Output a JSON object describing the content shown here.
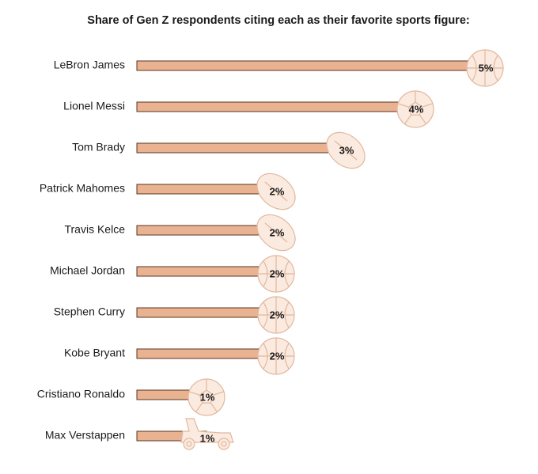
{
  "chart_data": {
    "type": "bar",
    "orientation": "horizontal",
    "title": "Share of Gen Z respondents citing each as their favorite sports figure:",
    "categories": [
      "LeBron James",
      "Lionel Messi",
      "Tom Brady",
      "Patrick Mahomes",
      "Travis Kelce",
      "Michael Jordan",
      "Stephen Curry",
      "Kobe Bryant",
      "Cristiano Ronaldo",
      "Max Verstappen"
    ],
    "values": [
      5,
      4,
      3,
      2,
      2,
      2,
      2,
      2,
      1,
      1
    ],
    "value_labels": [
      "5%",
      "4%",
      "3%",
      "2%",
      "2%",
      "2%",
      "2%",
      "2%",
      "1%",
      "1%"
    ],
    "color": "#e9b391"
  }
}
